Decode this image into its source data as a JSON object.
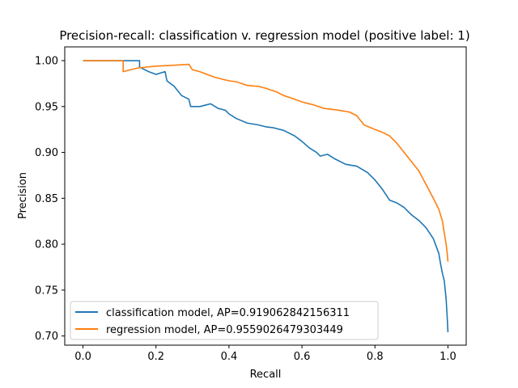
{
  "chart_data": {
    "type": "line",
    "title": "Precision-recall: classification v. regression model (positive label: 1)",
    "xlabel": "Recall",
    "ylabel": "Precision",
    "xlim": [
      -0.05,
      1.05
    ],
    "ylim": [
      0.69,
      1.015
    ],
    "x_ticks": [
      "0.0",
      "0.2",
      "0.4",
      "0.6",
      "0.8",
      "1.0"
    ],
    "x_tick_values": [
      0.0,
      0.2,
      0.4,
      0.6,
      0.8,
      1.0
    ],
    "y_ticks": [
      "0.70",
      "0.75",
      "0.80",
      "0.85",
      "0.90",
      "0.95",
      "1.00"
    ],
    "y_tick_values": [
      0.7,
      0.75,
      0.8,
      0.85,
      0.9,
      0.95,
      1.0
    ],
    "grid": false,
    "legend_position": "lower-left",
    "series": [
      {
        "name": "classification model, AP=0.919062842156311",
        "color": "#1f77b4",
        "points": [
          [
            0.0,
            1.0
          ],
          [
            0.155,
            1.0
          ],
          [
            0.155,
            0.993
          ],
          [
            0.18,
            0.988
          ],
          [
            0.2,
            0.985
          ],
          [
            0.225,
            0.988
          ],
          [
            0.23,
            0.978
          ],
          [
            0.25,
            0.972
          ],
          [
            0.27,
            0.962
          ],
          [
            0.29,
            0.958
          ],
          [
            0.295,
            0.95
          ],
          [
            0.32,
            0.95
          ],
          [
            0.35,
            0.953
          ],
          [
            0.37,
            0.948
          ],
          [
            0.39,
            0.946
          ],
          [
            0.4,
            0.942
          ],
          [
            0.42,
            0.937
          ],
          [
            0.45,
            0.932
          ],
          [
            0.48,
            0.93
          ],
          [
            0.5,
            0.928
          ],
          [
            0.52,
            0.927
          ],
          [
            0.55,
            0.924
          ],
          [
            0.58,
            0.918
          ],
          [
            0.6,
            0.912
          ],
          [
            0.62,
            0.905
          ],
          [
            0.64,
            0.9
          ],
          [
            0.65,
            0.896
          ],
          [
            0.67,
            0.898
          ],
          [
            0.69,
            0.893
          ],
          [
            0.72,
            0.887
          ],
          [
            0.75,
            0.885
          ],
          [
            0.78,
            0.878
          ],
          [
            0.8,
            0.87
          ],
          [
            0.82,
            0.86
          ],
          [
            0.84,
            0.848
          ],
          [
            0.86,
            0.845
          ],
          [
            0.88,
            0.84
          ],
          [
            0.9,
            0.832
          ],
          [
            0.92,
            0.826
          ],
          [
            0.94,
            0.818
          ],
          [
            0.96,
            0.806
          ],
          [
            0.975,
            0.79
          ],
          [
            0.98,
            0.778
          ],
          [
            0.985,
            0.768
          ],
          [
            0.99,
            0.76
          ],
          [
            0.995,
            0.74
          ],
          [
            0.998,
            0.72
          ],
          [
            1.0,
            0.704
          ]
        ]
      },
      {
        "name": "regression model, AP=0.9559026479303449",
        "color": "#ff7f0e",
        "points": [
          [
            0.0,
            1.0
          ],
          [
            0.11,
            1.0
          ],
          [
            0.11,
            0.988
          ],
          [
            0.15,
            0.992
          ],
          [
            0.2,
            0.994
          ],
          [
            0.25,
            0.995
          ],
          [
            0.29,
            0.996
          ],
          [
            0.3,
            0.99
          ],
          [
            0.32,
            0.988
          ],
          [
            0.34,
            0.985
          ],
          [
            0.36,
            0.982
          ],
          [
            0.38,
            0.98
          ],
          [
            0.4,
            0.978
          ],
          [
            0.42,
            0.977
          ],
          [
            0.45,
            0.973
          ],
          [
            0.48,
            0.972
          ],
          [
            0.5,
            0.97
          ],
          [
            0.53,
            0.966
          ],
          [
            0.55,
            0.962
          ],
          [
            0.58,
            0.958
          ],
          [
            0.6,
            0.955
          ],
          [
            0.63,
            0.952
          ],
          [
            0.66,
            0.948
          ],
          [
            0.7,
            0.946
          ],
          [
            0.73,
            0.944
          ],
          [
            0.75,
            0.94
          ],
          [
            0.77,
            0.93
          ],
          [
            0.8,
            0.925
          ],
          [
            0.82,
            0.922
          ],
          [
            0.84,
            0.918
          ],
          [
            0.86,
            0.91
          ],
          [
            0.88,
            0.9
          ],
          [
            0.9,
            0.89
          ],
          [
            0.92,
            0.88
          ],
          [
            0.94,
            0.865
          ],
          [
            0.96,
            0.85
          ],
          [
            0.975,
            0.838
          ],
          [
            0.985,
            0.825
          ],
          [
            0.99,
            0.812
          ],
          [
            0.995,
            0.8
          ],
          [
            0.998,
            0.79
          ],
          [
            1.0,
            0.781
          ]
        ]
      }
    ]
  }
}
